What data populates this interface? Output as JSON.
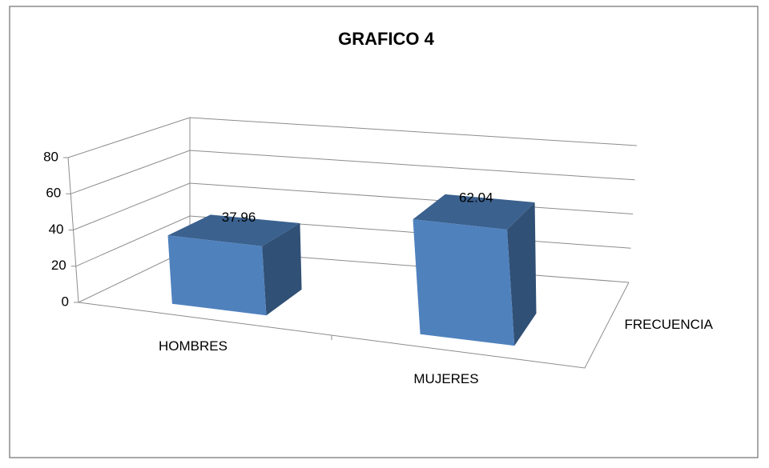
{
  "chart_data": {
    "type": "bar3d",
    "title": "GRAFICO 4",
    "categories": [
      "HOMBRES",
      "MUJERES"
    ],
    "series": [
      {
        "name": "FRECUENCIA",
        "color": "#4f81bd",
        "values": [
          37.96,
          62.04
        ]
      }
    ],
    "ylim": [
      0,
      80
    ],
    "yticks": [
      0,
      20,
      40,
      60,
      80
    ],
    "grid": true
  }
}
